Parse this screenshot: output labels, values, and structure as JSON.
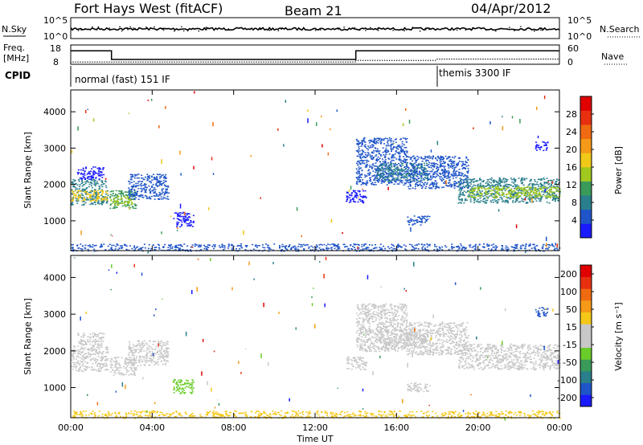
{
  "header": {
    "radar": "Fort Hays West (fitACF)",
    "beam": "Beam 21",
    "date": "04/Apr/2012"
  },
  "labels": {
    "nsky": "N.Sky",
    "nsearch": "N.Search",
    "freq_top": "Freq.",
    "freq_unit": "[MHz]",
    "nave": "Nave",
    "cpid": "CPID",
    "cpid_mode_1": "normal (fast) 151 IF",
    "cpid_mode_2": "themis 3300 IF",
    "xlabel": "Time UT"
  },
  "noise_panel": {
    "left_ticks": [
      "10^5",
      "10^0"
    ],
    "right_ticks": [
      "10^5",
      "10^0"
    ]
  },
  "freq_panel": {
    "left_ticks": [
      "18",
      "8"
    ],
    "right_ticks": [
      "60",
      "0"
    ],
    "freq_steps": [
      {
        "x": 0,
        "y": 15
      },
      {
        "x": 2,
        "y": 15
      },
      {
        "x": 2,
        "y": 10.5
      },
      {
        "x": 14,
        "y": 10.5
      },
      {
        "x": 14,
        "y": 15
      },
      {
        "x": 24,
        "y": 15
      }
    ],
    "nave_levels": [
      {
        "x0": 0,
        "x1": 14,
        "y": 7
      },
      {
        "x0": 14,
        "y": 12,
        "x1": 18
      },
      {
        "x0": 18,
        "x1": 24,
        "y": 16
      }
    ]
  },
  "cpid_switch_hours": [
    18
  ],
  "chart_data": [
    {
      "type": "heatmap",
      "name": "power",
      "ylabel": "Slant Range [km]",
      "ylim": [
        180,
        4600
      ],
      "xlim_hours": [
        0,
        24
      ],
      "y_ticks": [
        1000,
        2000,
        3000,
        4000
      ],
      "colorbar": {
        "label": "Power [dB]",
        "ticks": [
          "4",
          "8",
          "12",
          "16",
          "20",
          "24",
          "28"
        ],
        "colors": [
          "#1a1aff",
          "#1f55c8",
          "#2a7f8c",
          "#3a9a5a",
          "#a0c81e",
          "#f0c818",
          "#f59a18",
          "#f06a12",
          "#e83010",
          "#e00000"
        ]
      },
      "regions": [
        {
          "t0": 0.0,
          "t1": 1.8,
          "r0": 1450,
          "r1": 2150,
          "c": "#2a7f8c"
        },
        {
          "t0": 0.0,
          "t1": 1.8,
          "r0": 1550,
          "r1": 1850,
          "c": "#f0c818"
        },
        {
          "t0": 0.3,
          "t1": 1.6,
          "r0": 2150,
          "r1": 2500,
          "c": "#1a1aff"
        },
        {
          "t0": 1.9,
          "t1": 3.2,
          "r0": 1350,
          "r1": 1850,
          "c": "#3a9a5a"
        },
        {
          "t0": 1.9,
          "t1": 3.0,
          "r0": 1450,
          "r1": 1700,
          "c": "#a0c81e"
        },
        {
          "t0": 2.8,
          "t1": 4.8,
          "r0": 1600,
          "r1": 2300,
          "c": "#1f55c8"
        },
        {
          "t0": 5.0,
          "t1": 6.0,
          "r0": 850,
          "r1": 1250,
          "c": "#1a1aff"
        },
        {
          "t0": 14.0,
          "t1": 16.5,
          "r0": 2000,
          "r1": 3300,
          "c": "#1f55c8"
        },
        {
          "t0": 15.0,
          "t1": 17.5,
          "r0": 2100,
          "r1": 2600,
          "c": "#2a7f8c"
        },
        {
          "t0": 16.5,
          "t1": 19.5,
          "r0": 1900,
          "r1": 2800,
          "c": "#1f55c8"
        },
        {
          "t0": 19.0,
          "t1": 24.0,
          "r0": 1500,
          "r1": 2200,
          "c": "#2a7f8c"
        },
        {
          "t0": 19.5,
          "t1": 24.0,
          "r0": 1650,
          "r1": 1950,
          "c": "#a0c81e"
        },
        {
          "t0": 13.5,
          "t1": 14.5,
          "r0": 1500,
          "r1": 1850,
          "c": "#1a1aff"
        },
        {
          "t0": 16.5,
          "t1": 17.6,
          "r0": 900,
          "r1": 1150,
          "c": "#1f55c8"
        },
        {
          "t0": 22.8,
          "t1": 23.4,
          "r0": 2950,
          "r1": 3200,
          "c": "#1a1aff"
        },
        {
          "t0": 0.0,
          "t1": 24.0,
          "r0": 180,
          "r1": 380,
          "c": "#1f55c8"
        }
      ]
    },
    {
      "type": "heatmap",
      "name": "velocity",
      "ylabel": "Slant Range [km]",
      "ylim": [
        180,
        4600
      ],
      "xlim_hours": [
        0,
        24
      ],
      "y_ticks": [
        1000,
        2000,
        3000,
        4000
      ],
      "x_ticks": [
        "00:00",
        "04:00",
        "08:00",
        "12:00",
        "16:00",
        "20:00",
        "00:00"
      ],
      "colorbar": {
        "label": "Velocity [m s⁻¹]",
        "ticks": [
          "200",
          "100",
          "50",
          "15",
          "-15",
          "-50",
          "-100",
          "-200"
        ],
        "colors": [
          "#1a1aff",
          "#1f55c8",
          "#2a7f8c",
          "#3a9a5a",
          "#6acc28",
          "#c8c8c8",
          "#c8c8c8",
          "#f5c818",
          "#f59a18",
          "#f06a12",
          "#e83010",
          "#e00000"
        ]
      },
      "regions": [
        {
          "t0": 0.0,
          "t1": 1.8,
          "r0": 1450,
          "r1": 2150,
          "c": "#c8c8c8"
        },
        {
          "t0": 0.3,
          "t1": 1.6,
          "r0": 2150,
          "r1": 2500,
          "c": "#c8c8c8"
        },
        {
          "t0": 1.9,
          "t1": 3.2,
          "r0": 1350,
          "r1": 1850,
          "c": "#c8c8c8"
        },
        {
          "t0": 2.8,
          "t1": 4.8,
          "r0": 1600,
          "r1": 2300,
          "c": "#c8c8c8"
        },
        {
          "t0": 5.0,
          "t1": 6.0,
          "r0": 850,
          "r1": 1250,
          "c": "#6acc28"
        },
        {
          "t0": 14.0,
          "t1": 16.5,
          "r0": 2000,
          "r1": 3300,
          "c": "#c8c8c8"
        },
        {
          "t0": 15.0,
          "t1": 17.5,
          "r0": 2100,
          "r1": 2600,
          "c": "#c8c8c8"
        },
        {
          "t0": 16.5,
          "t1": 19.5,
          "r0": 1900,
          "r1": 2800,
          "c": "#c8c8c8"
        },
        {
          "t0": 19.0,
          "t1": 24.0,
          "r0": 1500,
          "r1": 2200,
          "c": "#c8c8c8"
        },
        {
          "t0": 13.5,
          "t1": 14.5,
          "r0": 1500,
          "r1": 1850,
          "c": "#c8c8c8"
        },
        {
          "t0": 16.5,
          "t1": 17.6,
          "r0": 900,
          "r1": 1150,
          "c": "#c8c8c8"
        },
        {
          "t0": 22.8,
          "t1": 23.4,
          "r0": 2950,
          "r1": 3200,
          "c": "#1f55c8"
        },
        {
          "t0": 0.0,
          "t1": 24.0,
          "r0": 180,
          "r1": 380,
          "c": "#f5c818"
        }
      ]
    }
  ]
}
